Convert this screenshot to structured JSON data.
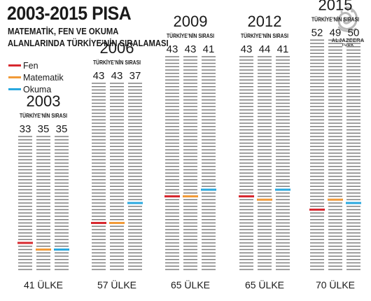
{
  "header": {
    "title": "2003-2015 PISA",
    "subtitle_line1": "MATEMATİK, FEN VE OKUMA",
    "subtitle_line2": "ALANLARINDA TÜRKİYE’NİN SIRALAMASI"
  },
  "logo": {
    "name": "ALJAZEERA",
    "sub": "TURK",
    "icon": "al-jazeera-calligraphy-logo"
  },
  "colors": {
    "fen": "#d7282f",
    "matematik": "#f19a38",
    "okuma": "#29a8df",
    "stripe": "#808080"
  },
  "chart_data": {
    "type": "bar",
    "title": "2003-2015 PISA",
    "subtitle": "MATEMATİK, FEN VE OKUMA ALANLARINDA TÜRKİYE’NİN SIRALAMASI",
    "series_names": [
      "Fen",
      "Matematik",
      "Okuma"
    ],
    "rank_label": "TÜRKİYE’NİN SIRASI",
    "panels": [
      {
        "year": "2003",
        "total_label": "41 ÜLKE",
        "total": 41,
        "ranks": [
          33,
          35,
          35
        ]
      },
      {
        "year": "2006",
        "total_label": "57 ÜLKE",
        "total": 57,
        "ranks": [
          43,
          43,
          37
        ]
      },
      {
        "year": "2009",
        "total_label": "65 ÜLKE",
        "total": 65,
        "ranks": [
          43,
          43,
          41
        ]
      },
      {
        "year": "2012",
        "total_label": "65 ÜLKE",
        "total": 65,
        "ranks": [
          43,
          44,
          41
        ]
      },
      {
        "year": "2015",
        "total_label": "70 ÜLKE",
        "total": 70,
        "ranks": [
          52,
          49,
          50
        ]
      }
    ]
  }
}
